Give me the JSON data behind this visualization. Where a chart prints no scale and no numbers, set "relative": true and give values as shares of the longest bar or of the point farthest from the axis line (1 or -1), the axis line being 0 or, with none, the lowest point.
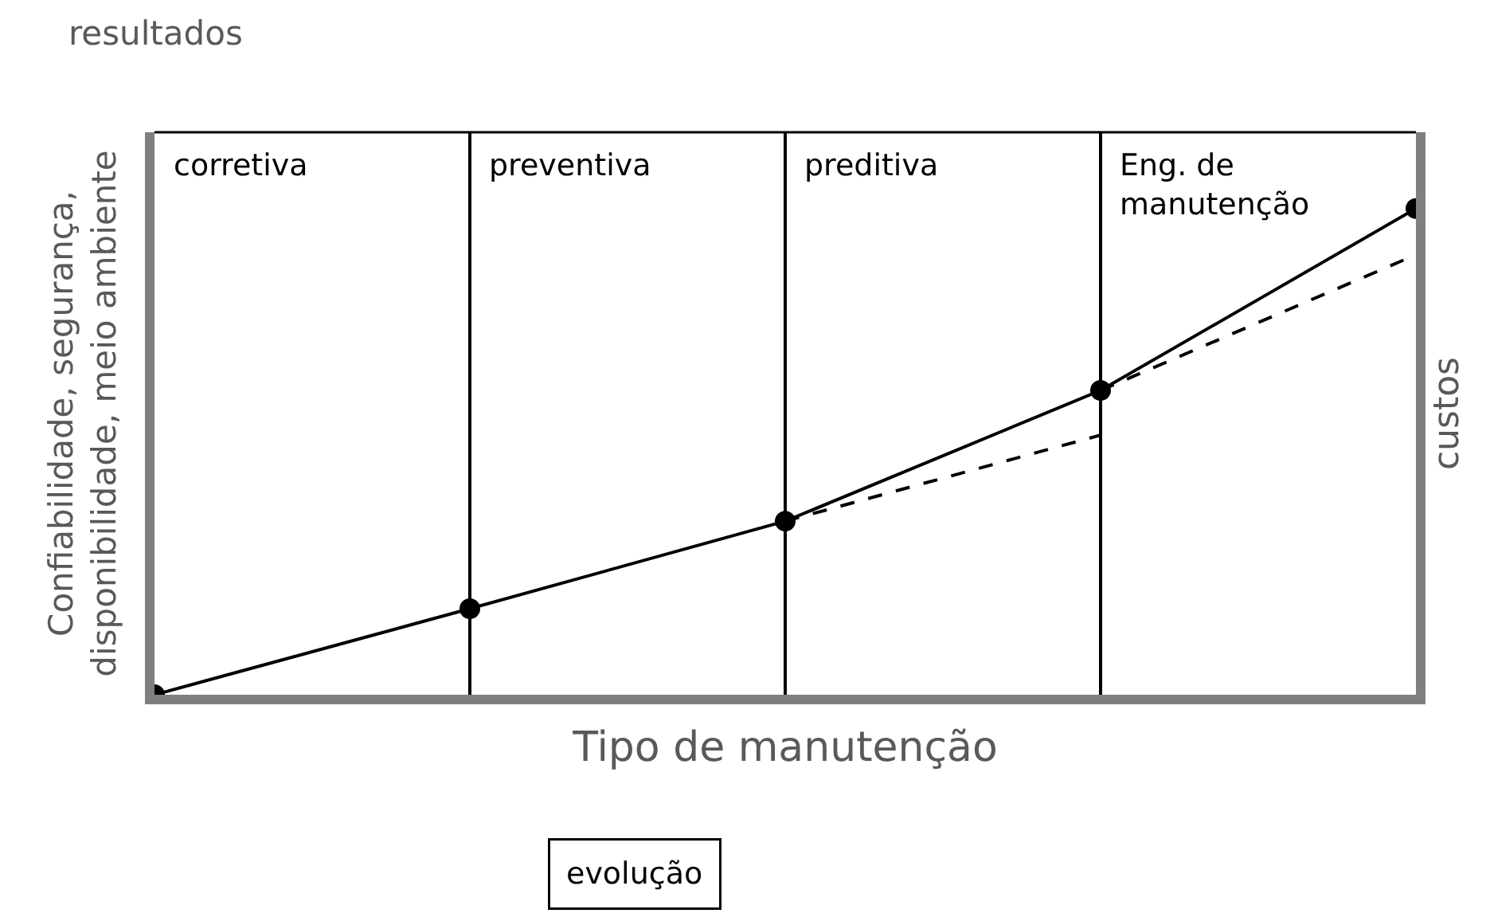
{
  "chart_data": {
    "type": "line",
    "relative": true,
    "xlabel": "Tipo de manutenção",
    "ylabel": "Confiabilidade, segurança,\ndisponibilidade, meio ambiente",
    "y2label": "custos",
    "categories": [
      null,
      null,
      null,
      null,
      null
    ],
    "series": [
      {
        "color": "#000000",
        "values": [
          0,
          0.177,
          0.357,
          0.626,
          1.0
        ],
        "line_style": "solid",
        "marker": "circle"
      },
      {
        "color": "#000000",
        "values": [
          null,
          null,
          0.357,
          0.534,
          null
        ],
        "line_style": "dashed",
        "marker": "none"
      },
      {
        "color": "#000000",
        "values": [
          null,
          null,
          null,
          0.626,
          0.905
        ],
        "line_style": "dashed",
        "marker": "none"
      }
    ],
    "grid": "x",
    "annotations": [
      "corretiva",
      "preventiva",
      "preditiva",
      "Eng. de\nmanutenção",
      "resultados",
      "evolução"
    ]
  }
}
